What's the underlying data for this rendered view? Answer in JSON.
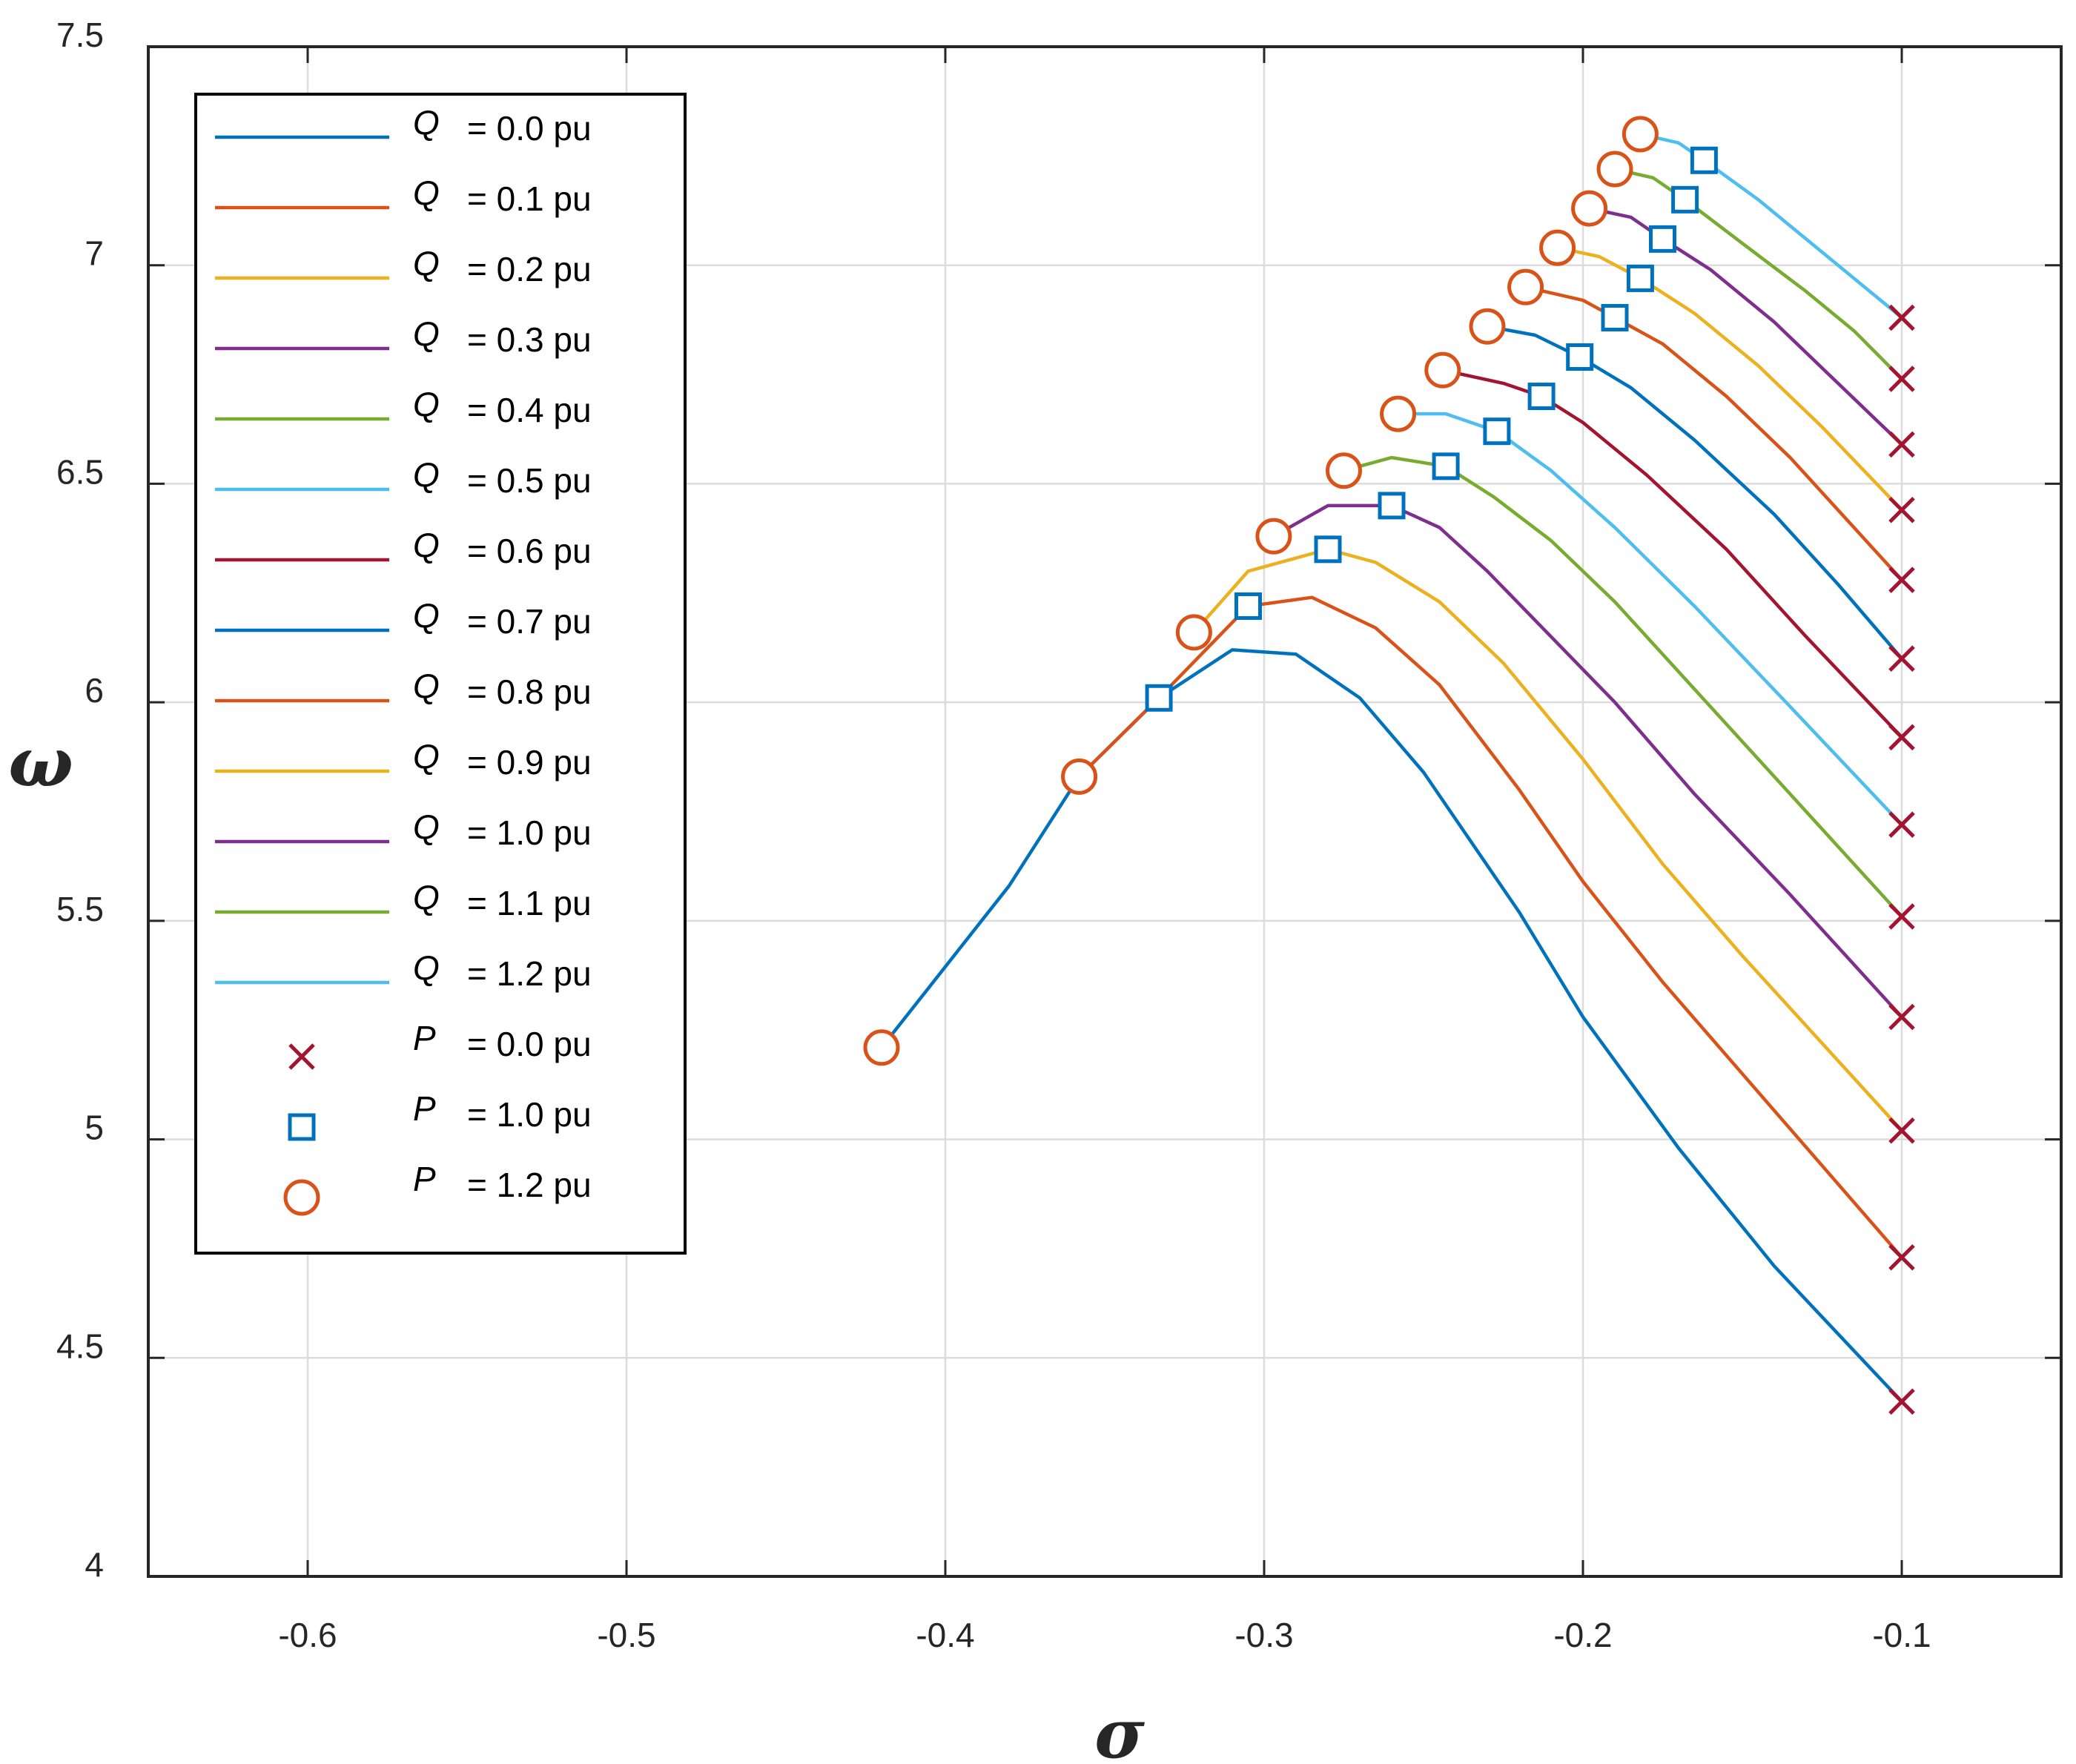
{
  "chart_data": {
    "type": "line",
    "title": "",
    "xlabel": "σ",
    "ylabel": "ω",
    "xlim": [
      -0.65,
      -0.05
    ],
    "ylim": [
      4,
      7.5
    ],
    "grid": true,
    "legend_position": "top-left",
    "x_ticks": [
      -0.6,
      -0.5,
      -0.4,
      -0.3,
      -0.2,
      -0.1
    ],
    "x_tick_labels": [
      "-0.6",
      "-0.5",
      "-0.4",
      "-0.3",
      "-0.2",
      "-0.1"
    ],
    "y_ticks": [
      4,
      4.5,
      5,
      5.5,
      6,
      6.5,
      7,
      7.5
    ],
    "y_tick_labels": [
      "4",
      "4.5",
      "5",
      "5.5",
      "6",
      "6.5",
      "7",
      "7.5"
    ],
    "series": [
      {
        "name": "Q = 0.0 pu",
        "var": "Q",
        "label": "= 0.0 pu",
        "color": "#0072BD",
        "x": [
          -0.42,
          -0.38,
          -0.358,
          -0.333,
          -0.31,
          -0.29,
          -0.27,
          -0.25,
          -0.22,
          -0.2,
          -0.17,
          -0.14,
          -0.1
        ],
        "y": [
          5.21,
          5.58,
          5.83,
          6.01,
          6.12,
          6.11,
          6.01,
          5.84,
          5.52,
          5.28,
          4.98,
          4.71,
          4.4
        ]
      },
      {
        "name": "Q = 0.1 pu",
        "var": "Q",
        "label": "= 0.1 pu",
        "color": "#D95319",
        "x": [
          -0.358,
          -0.333,
          -0.305,
          -0.285,
          -0.265,
          -0.245,
          -0.22,
          -0.2,
          -0.175,
          -0.15,
          -0.1
        ],
        "y": [
          5.83,
          6.01,
          6.22,
          6.24,
          6.17,
          6.04,
          5.8,
          5.59,
          5.36,
          5.15,
          4.73
        ]
      },
      {
        "name": "Q = 0.2 pu",
        "var": "Q",
        "label": "= 0.2 pu",
        "color": "#EDB120",
        "x": [
          -0.322,
          -0.305,
          -0.28,
          -0.265,
          -0.245,
          -0.225,
          -0.2,
          -0.175,
          -0.15,
          -0.1
        ],
        "y": [
          6.16,
          6.3,
          6.35,
          6.32,
          6.23,
          6.09,
          5.87,
          5.63,
          5.42,
          5.02
        ]
      },
      {
        "name": "Q = 0.3 pu",
        "var": "Q",
        "label": "= 0.3 pu",
        "color": "#7E2F8E",
        "x": [
          -0.297,
          -0.28,
          -0.26,
          -0.245,
          -0.23,
          -0.21,
          -0.19,
          -0.165,
          -0.135,
          -0.1
        ],
        "y": [
          6.38,
          6.45,
          6.45,
          6.4,
          6.3,
          6.15,
          6.0,
          5.79,
          5.56,
          5.28
        ]
      },
      {
        "name": "Q = 0.4 pu",
        "var": "Q",
        "label": "= 0.4 pu",
        "color": "#77AC30",
        "x": [
          -0.275,
          -0.26,
          -0.243,
          -0.228,
          -0.21,
          -0.19,
          -0.165,
          -0.135,
          -0.1
        ],
        "y": [
          6.53,
          6.56,
          6.54,
          6.47,
          6.37,
          6.23,
          6.03,
          5.79,
          5.51
        ]
      },
      {
        "name": "Q = 0.5 pu",
        "var": "Q",
        "label": "= 0.5 pu",
        "color": "#4DBEEE",
        "x": [
          -0.258,
          -0.243,
          -0.227,
          -0.21,
          -0.19,
          -0.165,
          -0.135,
          -0.1
        ],
        "y": [
          6.66,
          6.66,
          6.62,
          6.53,
          6.4,
          6.22,
          5.99,
          5.72
        ]
      },
      {
        "name": "Q = 0.6 pu",
        "var": "Q",
        "label": "= 0.6 pu",
        "color": "#A2142F",
        "x": [
          -0.244,
          -0.225,
          -0.213,
          -0.2,
          -0.18,
          -0.155,
          -0.13,
          -0.1
        ],
        "y": [
          6.76,
          6.73,
          6.7,
          6.64,
          6.52,
          6.35,
          6.15,
          5.92
        ]
      },
      {
        "name": "Q = 0.7 pu",
        "var": "Q",
        "label": "= 0.7 pu",
        "color": "#0072BD",
        "x": [
          -0.23,
          -0.215,
          -0.201,
          -0.185,
          -0.165,
          -0.14,
          -0.12,
          -0.1
        ],
        "y": [
          6.86,
          6.84,
          6.79,
          6.72,
          6.6,
          6.43,
          6.27,
          6.1
        ]
      },
      {
        "name": "Q = 0.8 pu",
        "var": "Q",
        "label": "= 0.8 pu",
        "color": "#D95319",
        "x": [
          -0.218,
          -0.2,
          -0.19,
          -0.175,
          -0.155,
          -0.135,
          -0.115,
          -0.1
        ],
        "y": [
          6.95,
          6.92,
          6.88,
          6.82,
          6.7,
          6.56,
          6.4,
          6.28
        ]
      },
      {
        "name": "Q = 0.9 pu",
        "var": "Q",
        "label": "= 0.9 pu",
        "color": "#EDB120",
        "x": [
          -0.208,
          -0.195,
          -0.182,
          -0.165,
          -0.145,
          -0.125,
          -0.1
        ],
        "y": [
          7.04,
          7.02,
          6.97,
          6.89,
          6.77,
          6.63,
          6.44
        ]
      },
      {
        "name": "Q = 1.0 pu",
        "var": "Q",
        "label": "= 1.0 pu",
        "color": "#7E2F8E",
        "x": [
          -0.198,
          -0.185,
          -0.175,
          -0.16,
          -0.14,
          -0.12,
          -0.1
        ],
        "y": [
          7.13,
          7.11,
          7.06,
          6.99,
          6.87,
          6.73,
          6.59
        ]
      },
      {
        "name": "Q = 1.1 pu",
        "var": "Q",
        "label": "= 1.1 pu",
        "color": "#77AC30",
        "x": [
          -0.19,
          -0.178,
          -0.168,
          -0.15,
          -0.13,
          -0.115,
          -0.1
        ],
        "y": [
          7.22,
          7.2,
          7.15,
          7.05,
          6.94,
          6.85,
          6.74
        ]
      },
      {
        "name": "Q = 1.2 pu",
        "var": "Q",
        "label": "= 1.2 pu",
        "color": "#4DBEEE",
        "x": [
          -0.182,
          -0.17,
          -0.162,
          -0.145,
          -0.125,
          -0.1
        ],
        "y": [
          7.3,
          7.28,
          7.24,
          7.15,
          7.03,
          6.88
        ]
      }
    ],
    "markers": [
      {
        "name": "P = 0.0 pu",
        "var": "P",
        "label": "= 0.0 pu",
        "shape": "x",
        "color": "#A2142F",
        "x": [
          -0.1,
          -0.1,
          -0.1,
          -0.1,
          -0.1,
          -0.1,
          -0.1,
          -0.1,
          -0.1,
          -0.1,
          -0.1,
          -0.1,
          -0.1
        ],
        "y": [
          4.4,
          4.73,
          5.02,
          5.28,
          5.51,
          5.72,
          5.92,
          6.1,
          6.28,
          6.44,
          6.59,
          6.74,
          6.88
        ]
      },
      {
        "name": "P = 1.0 pu",
        "var": "P",
        "label": "= 1.0 pu",
        "shape": "square",
        "color": "#0072BD",
        "x": [
          -0.333,
          -0.305,
          -0.28,
          -0.26,
          -0.243,
          -0.227,
          -0.213,
          -0.201,
          -0.19,
          -0.182,
          -0.175,
          -0.168,
          -0.162
        ],
        "y": [
          6.01,
          6.22,
          6.35,
          6.45,
          6.54,
          6.62,
          6.7,
          6.79,
          6.88,
          6.97,
          7.06,
          7.15,
          7.24
        ]
      },
      {
        "name": "P = 1.2 pu",
        "var": "P",
        "label": "= 1.2 pu",
        "shape": "circle",
        "color": "#D95319",
        "x": [
          -0.42,
          -0.358,
          -0.322,
          -0.297,
          -0.275,
          -0.258,
          -0.244,
          -0.23,
          -0.218,
          -0.208,
          -0.198,
          -0.19,
          -0.182
        ],
        "y": [
          5.21,
          5.83,
          6.16,
          6.38,
          6.53,
          6.66,
          6.76,
          6.86,
          6.95,
          7.04,
          7.13,
          7.22,
          7.3
        ]
      }
    ]
  }
}
